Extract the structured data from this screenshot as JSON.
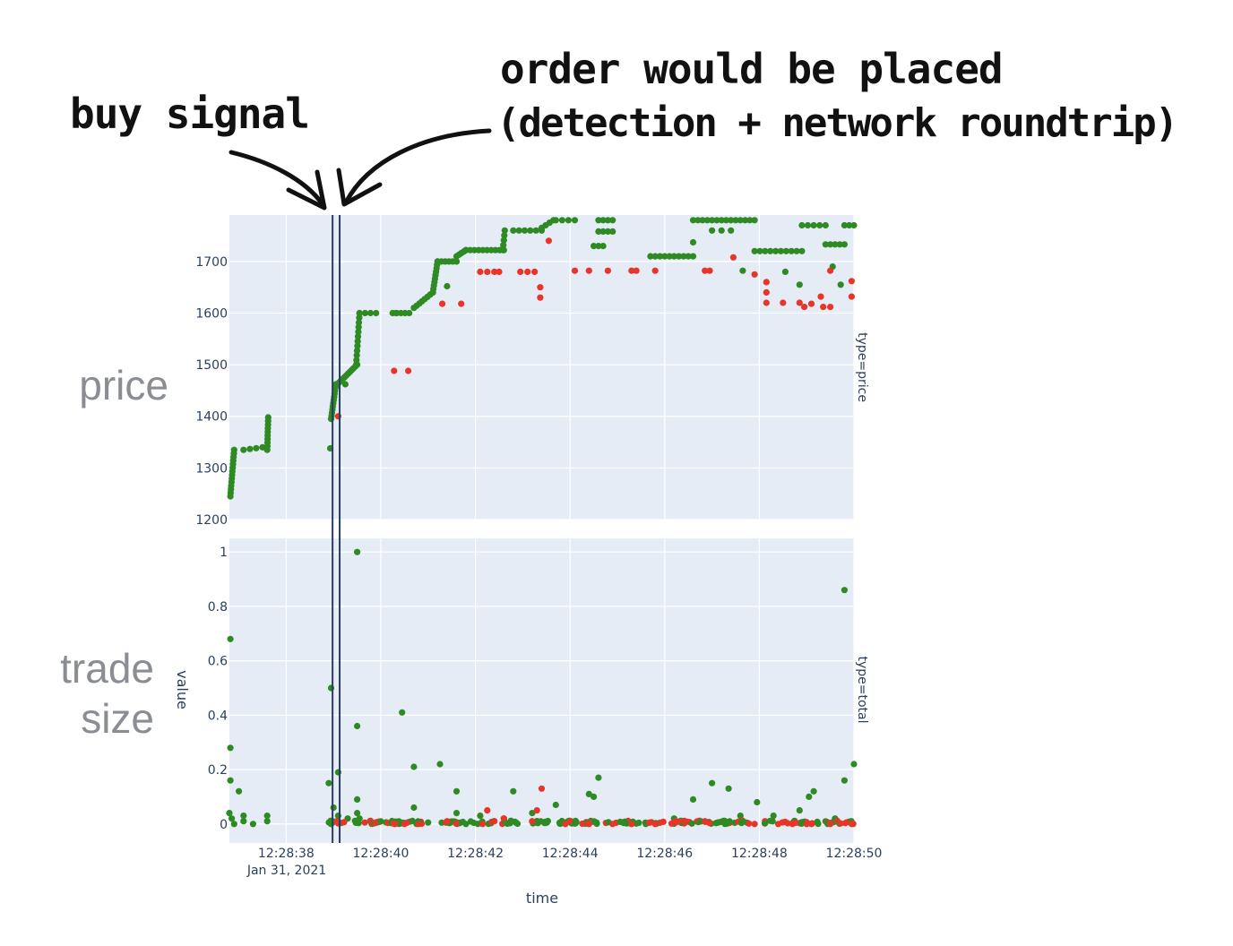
{
  "annotations": {
    "buy_signal": "buy signal",
    "order_line1": "order would be placed",
    "order_line2": "(detection + network roundtrip)",
    "side_price": "price",
    "side_trade_size": "trade size"
  },
  "colors": {
    "buy": "#2e8b23",
    "sell": "#e8352a",
    "plot_bg": "#e5ecf6",
    "signal_line": "#2a3f5f"
  },
  "chart_data": {
    "type": "scatter",
    "xlabel": "time",
    "ylabel": "value",
    "x_date": "Jan 31, 2021",
    "x_ticks": [
      "12:28:38",
      "12:28:40",
      "12:28:42",
      "12:28:44",
      "12:28:46",
      "12:28:48",
      "12:28:50"
    ],
    "x_range": [
      "12:28:36.8",
      "12:28:50"
    ],
    "vertical_lines": [
      {
        "name": "buy signal",
        "x": "12:28:38.98"
      },
      {
        "name": "order would be placed",
        "x": "12:28:39.13"
      }
    ],
    "facets": [
      {
        "name": "type=price",
        "ylim": [
          1200,
          1790
        ],
        "y_ticks": [
          "1200",
          "1300",
          "1400",
          "1500",
          "1600",
          "1700"
        ],
        "buy_runs": [
          {
            "t0": 36.82,
            "t1": 36.9,
            "y0": 1245,
            "y1": 1335,
            "n": 14
          },
          {
            "t0": 37.1,
            "t1": 37.5,
            "y0": 1335,
            "y1": 1340,
            "n": 4
          },
          {
            "t0": 37.6,
            "t1": 37.62,
            "y0": 1335,
            "y1": 1398,
            "n": 10
          },
          {
            "t0": 38.95,
            "t1": 39.05,
            "y0": 1395,
            "y1": 1462,
            "n": 12
          },
          {
            "t0": 39.08,
            "t1": 39.5,
            "y0": 1462,
            "y1": 1500,
            "n": 12
          },
          {
            "t0": 39.48,
            "t1": 39.55,
            "y0": 1500,
            "y1": 1600,
            "n": 12
          },
          {
            "t0": 39.55,
            "t1": 39.9,
            "y0": 1600,
            "y1": 1600,
            "n": 4
          },
          {
            "t0": 40.25,
            "t1": 40.6,
            "y0": 1600,
            "y1": 1600,
            "n": 5
          },
          {
            "t0": 40.7,
            "t1": 41.1,
            "y0": 1610,
            "y1": 1640,
            "n": 8
          },
          {
            "t0": 41.1,
            "t1": 41.2,
            "y0": 1640,
            "y1": 1700,
            "n": 10
          },
          {
            "t0": 41.2,
            "t1": 41.6,
            "y0": 1700,
            "y1": 1700,
            "n": 6
          },
          {
            "t0": 41.6,
            "t1": 41.8,
            "y0": 1710,
            "y1": 1722,
            "n": 5
          },
          {
            "t0": 41.8,
            "t1": 42.6,
            "y0": 1722,
            "y1": 1722,
            "n": 10
          },
          {
            "t0": 42.58,
            "t1": 42.62,
            "y0": 1722,
            "y1": 1760,
            "n": 5
          },
          {
            "t0": 42.8,
            "t1": 43.4,
            "y0": 1760,
            "y1": 1760,
            "n": 6
          },
          {
            "t0": 43.4,
            "t1": 43.65,
            "y0": 1765,
            "y1": 1780,
            "n": 4
          },
          {
            "t0": 43.7,
            "t1": 44.1,
            "y0": 1780,
            "y1": 1780,
            "n": 4
          },
          {
            "t0": 44.6,
            "t1": 44.9,
            "y0": 1780,
            "y1": 1780,
            "n": 4
          },
          {
            "t0": 44.6,
            "t1": 44.9,
            "y0": 1758,
            "y1": 1758,
            "n": 4
          },
          {
            "t0": 44.5,
            "t1": 44.7,
            "y0": 1730,
            "y1": 1730,
            "n": 3
          },
          {
            "t0": 45.7,
            "t1": 46.6,
            "y0": 1710,
            "y1": 1710,
            "n": 10
          },
          {
            "t0": 46.6,
            "t1": 47.9,
            "y0": 1780,
            "y1": 1780,
            "n": 14
          },
          {
            "t0": 47.0,
            "t1": 47.4,
            "y0": 1760,
            "y1": 1760,
            "n": 3
          },
          {
            "t0": 47.9,
            "t1": 48.9,
            "y0": 1720,
            "y1": 1720,
            "n": 10
          },
          {
            "t0": 48.9,
            "t1": 49.4,
            "y0": 1770,
            "y1": 1770,
            "n": 5
          },
          {
            "t0": 49.4,
            "t1": 49.8,
            "y0": 1733,
            "y1": 1733,
            "n": 5
          },
          {
            "t0": 49.8,
            "t1": 50.0,
            "y0": 1770,
            "y1": 1770,
            "n": 3
          }
        ],
        "buy_points": [
          [
            38.93,
            1338
          ],
          [
            39.25,
            1462
          ],
          [
            40.32,
            1600
          ],
          [
            41.4,
            1652
          ],
          [
            46.6,
            1737
          ],
          [
            47.65,
            1682
          ],
          [
            48.55,
            1680
          ],
          [
            48.85,
            1655
          ],
          [
            49.55,
            1690
          ],
          [
            49.72,
            1655
          ]
        ],
        "sell_points": [
          [
            39.1,
            1400
          ],
          [
            40.28,
            1488
          ],
          [
            40.58,
            1488
          ],
          [
            41.3,
            1618
          ],
          [
            41.7,
            1618
          ],
          [
            42.1,
            1680
          ],
          [
            42.25,
            1680
          ],
          [
            42.4,
            1680
          ],
          [
            42.5,
            1680
          ],
          [
            42.95,
            1680
          ],
          [
            43.1,
            1680
          ],
          [
            43.25,
            1680
          ],
          [
            43.37,
            1650
          ],
          [
            43.37,
            1630
          ],
          [
            44.1,
            1682
          ],
          [
            44.4,
            1682
          ],
          [
            44.8,
            1682
          ],
          [
            45.3,
            1682
          ],
          [
            45.4,
            1682
          ],
          [
            45.8,
            1682
          ],
          [
            46.85,
            1682
          ],
          [
            46.95,
            1682
          ],
          [
            47.9,
            1675
          ],
          [
            48.15,
            1660
          ],
          [
            48.15,
            1640
          ],
          [
            48.15,
            1620
          ],
          [
            48.5,
            1620
          ],
          [
            48.85,
            1620
          ],
          [
            48.95,
            1612
          ],
          [
            49.1,
            1618
          ],
          [
            49.3,
            1632
          ],
          [
            49.35,
            1612
          ],
          [
            49.5,
            1612
          ],
          [
            49.5,
            1682
          ],
          [
            49.95,
            1662
          ],
          [
            49.95,
            1632
          ],
          [
            47.45,
            1708
          ],
          [
            43.55,
            1740
          ]
        ]
      },
      {
        "name": "type=total",
        "ylim": [
          -0.07,
          1.05
        ],
        "y_ticks": [
          "0",
          "0.2",
          "0.4",
          "0.6",
          "0.8",
          "1"
        ],
        "buy_points": [
          [
            36.82,
            0.68
          ],
          [
            36.82,
            0.28
          ],
          [
            36.82,
            0.16
          ],
          [
            36.8,
            0.04
          ],
          [
            36.85,
            0.02
          ],
          [
            36.9,
            0.0
          ],
          [
            37.0,
            0.12
          ],
          [
            37.1,
            0.03
          ],
          [
            37.1,
            0.01
          ],
          [
            37.3,
            0.0
          ],
          [
            37.6,
            0.03
          ],
          [
            37.6,
            0.01
          ],
          [
            38.9,
            0.15
          ],
          [
            38.95,
            0.5
          ],
          [
            39.0,
            0.06
          ],
          [
            38.95,
            0.0
          ],
          [
            39.1,
            0.19
          ],
          [
            39.1,
            0.03
          ],
          [
            39.3,
            0.02
          ],
          [
            39.5,
            1.0
          ],
          [
            39.5,
            0.36
          ],
          [
            39.5,
            0.09
          ],
          [
            39.5,
            0.04
          ],
          [
            39.55,
            0.02
          ],
          [
            40.45,
            0.41
          ],
          [
            40.7,
            0.21
          ],
          [
            40.7,
            0.06
          ],
          [
            41.25,
            0.22
          ],
          [
            41.6,
            0.12
          ],
          [
            41.6,
            0.04
          ],
          [
            41.8,
            0.0
          ],
          [
            42.1,
            0.03
          ],
          [
            42.6,
            0.02
          ],
          [
            42.8,
            0.12
          ],
          [
            43.2,
            0.04
          ],
          [
            43.7,
            0.07
          ],
          [
            44.4,
            0.11
          ],
          [
            44.6,
            0.17
          ],
          [
            44.5,
            0.1
          ],
          [
            45.6,
            0.0
          ],
          [
            46.6,
            0.09
          ],
          [
            47.0,
            0.15
          ],
          [
            47.35,
            0.13
          ],
          [
            47.6,
            0.03
          ],
          [
            47.95,
            0.08
          ],
          [
            48.85,
            0.05
          ],
          [
            49.05,
            0.1
          ],
          [
            49.15,
            0.12
          ],
          [
            49.8,
            0.86
          ],
          [
            49.8,
            0.16
          ],
          [
            50.0,
            0.22
          ],
          [
            49.6,
            0.02
          ],
          [
            48.3,
            0.03
          ],
          [
            46.2,
            0.02
          ]
        ],
        "sell_points": [
          [
            40.3,
            0.0
          ],
          [
            40.5,
            0.0
          ],
          [
            40.8,
            0.0
          ],
          [
            41.4,
            0.01
          ],
          [
            42.25,
            0.05
          ],
          [
            42.4,
            0.01
          ],
          [
            42.6,
            0.02
          ],
          [
            43.4,
            0.13
          ],
          [
            43.3,
            0.05
          ],
          [
            43.9,
            0.0
          ],
          [
            44.4,
            0.0
          ],
          [
            44.9,
            0.0
          ],
          [
            45.3,
            0.0
          ],
          [
            45.8,
            0.0
          ],
          [
            46.85,
            0.01
          ],
          [
            47.9,
            0.0
          ],
          [
            48.4,
            0.0
          ],
          [
            48.7,
            0.0
          ],
          [
            49.0,
            0.0
          ],
          [
            49.1,
            0.0
          ],
          [
            49.5,
            0.0
          ],
          [
            49.95,
            0.0
          ],
          [
            43.2,
            0.01
          ],
          [
            42.15,
            0.0
          ]
        ],
        "baseline_cluster": {
          "t0": 38.9,
          "t1": 50.0,
          "n": 240
        }
      }
    ]
  }
}
